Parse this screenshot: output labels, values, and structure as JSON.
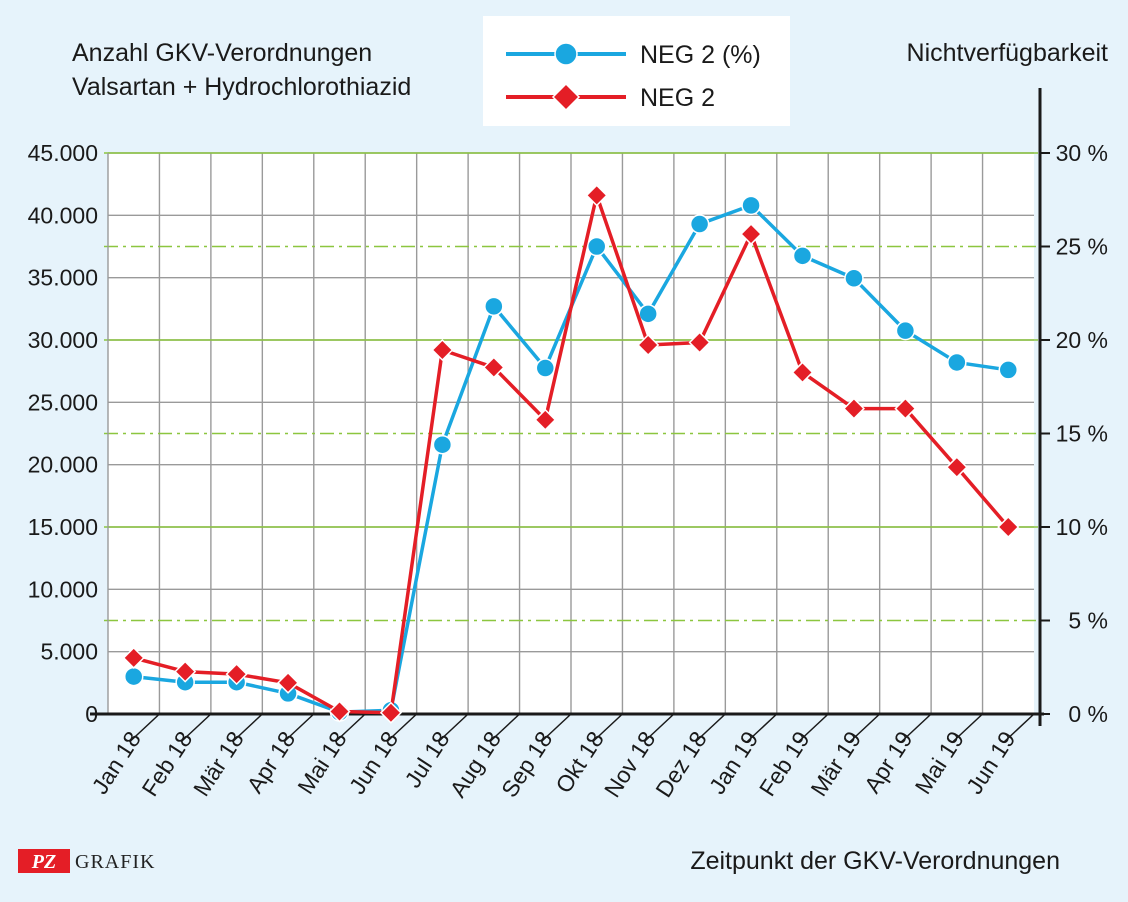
{
  "chart_data": {
    "type": "line",
    "title_left": [
      "Anzahl GKV-Verordnungen",
      "Valsartan + Hydrochlorothiazid"
    ],
    "title_right": "Nichtverfügbarkeit",
    "xlabel": "Zeitpunkt der GKV-Verordnungen",
    "categories": [
      "Jan 18",
      "Feb 18",
      "Mär 18",
      "Apr 18",
      "Mai 18",
      "Jun 18",
      "Jul 18",
      "Aug 18",
      "Sep 18",
      "Okt 18",
      "Nov 18",
      "Dez 18",
      "Jan 19",
      "Feb 19",
      "Mär 19",
      "Apr 19",
      "Mai 19",
      "Jun 19"
    ],
    "y_left": {
      "ylim": [
        0,
        45000
      ],
      "ticks": [
        0,
        5000,
        10000,
        15000,
        20000,
        25000,
        30000,
        35000,
        40000,
        45000
      ],
      "tick_labels": [
        "0",
        "5.000",
        "10.000",
        "15.000",
        "20.000",
        "25.000",
        "30.000",
        "35.000",
        "40.000",
        "45.000"
      ]
    },
    "y_right": {
      "ylim": [
        0,
        30
      ],
      "ticks": [
        0,
        5,
        10,
        15,
        20,
        25,
        30
      ],
      "tick_labels": [
        "0 %",
        "5 %",
        "10 %",
        "15 %",
        "20 %",
        "25 %",
        "30 %"
      ]
    },
    "grid": true,
    "legend_position": "top-center",
    "series": [
      {
        "name": "NEG 2 (%)",
        "axis": "right",
        "color": "#1aa7e0",
        "marker": "circle",
        "values": [
          2.0,
          1.7,
          1.7,
          1.1,
          0.1,
          0.2,
          14.4,
          21.8,
          18.5,
          25.0,
          21.4,
          26.2,
          27.2,
          24.5,
          23.3,
          20.5,
          18.8,
          18.4
        ]
      },
      {
        "name": "NEG 2",
        "axis": "left",
        "color": "#e41e26",
        "marker": "diamond",
        "values": [
          4500,
          3400,
          3200,
          2500,
          200,
          100,
          29200,
          27800,
          23600,
          41600,
          29600,
          29800,
          38500,
          27400,
          24500,
          24500,
          19800,
          15000
        ]
      }
    ]
  },
  "branding": {
    "pz": "PZ",
    "grafik": "GRAFIK",
    "accent_color": "#e41e26"
  }
}
